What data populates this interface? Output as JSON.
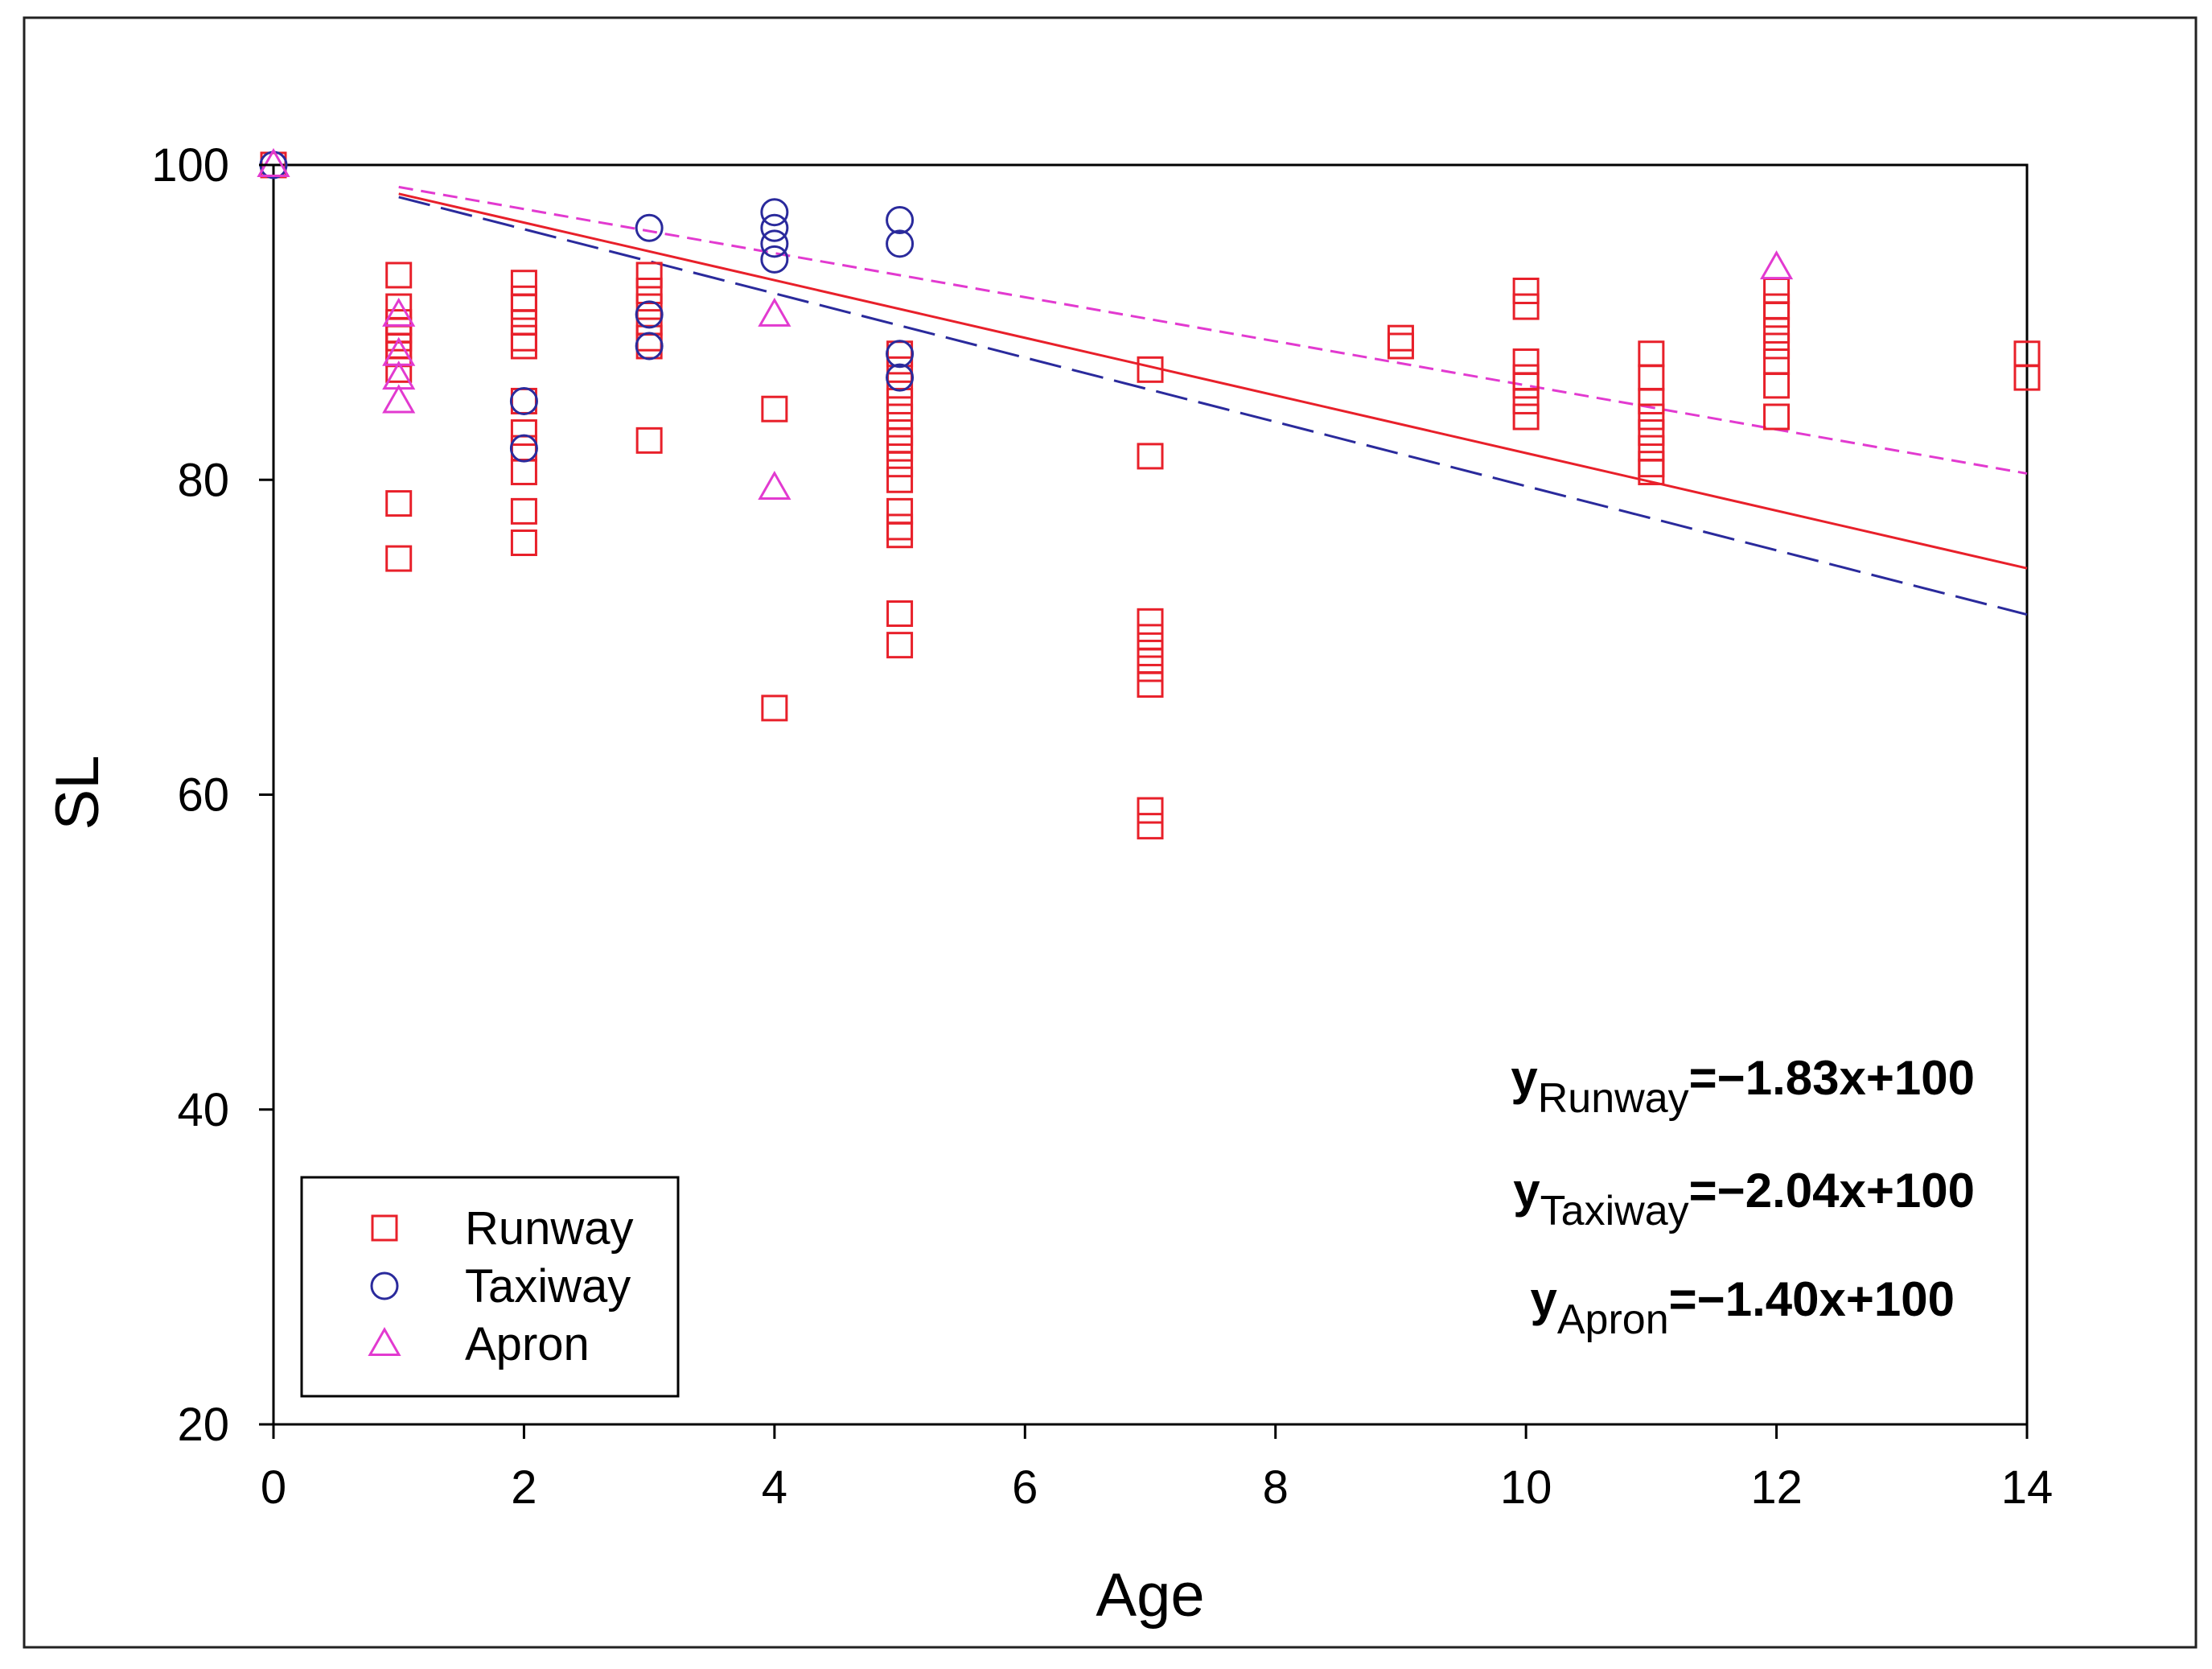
{
  "chart_data": {
    "type": "scatter",
    "title": "",
    "xlabel": "Age",
    "ylabel": "SL",
    "xlim": [
      0,
      14
    ],
    "ylim": [
      20,
      100
    ],
    "xticks": [
      "0",
      "2",
      "4",
      "6",
      "8",
      "10",
      "12",
      "14"
    ],
    "yticks": [
      "20",
      "40",
      "60",
      "80",
      "100"
    ],
    "grid": false,
    "legend_position": "bottom-left",
    "series": [
      {
        "name": "Runway",
        "marker": "square",
        "color": "#e8202a",
        "points": [
          [
            0,
            100
          ],
          [
            1,
            93
          ],
          [
            1,
            91
          ],
          [
            1,
            90
          ],
          [
            1,
            89.5
          ],
          [
            1,
            89
          ],
          [
            1,
            88.5
          ],
          [
            1,
            88
          ],
          [
            1,
            87
          ],
          [
            1,
            78.5
          ],
          [
            1,
            75
          ],
          [
            2,
            92.5
          ],
          [
            2,
            91.5
          ],
          [
            2,
            91
          ],
          [
            2,
            90
          ],
          [
            2,
            89
          ],
          [
            2,
            88.5
          ],
          [
            2,
            85
          ],
          [
            2,
            83
          ],
          [
            2,
            82
          ],
          [
            2,
            80.5
          ],
          [
            2,
            78
          ],
          [
            2,
            76
          ],
          [
            3,
            93
          ],
          [
            3,
            92
          ],
          [
            3,
            91
          ],
          [
            3,
            90
          ],
          [
            3,
            89
          ],
          [
            3,
            88.5
          ],
          [
            3,
            82.5
          ],
          [
            4,
            84.5
          ],
          [
            4,
            65.5
          ],
          [
            5,
            88
          ],
          [
            5,
            87
          ],
          [
            5,
            86
          ],
          [
            5,
            85
          ],
          [
            5,
            84
          ],
          [
            5,
            83
          ],
          [
            5,
            82.5
          ],
          [
            5,
            82
          ],
          [
            5,
            81
          ],
          [
            5,
            80
          ],
          [
            5,
            78
          ],
          [
            5,
            77
          ],
          [
            5,
            76.5
          ],
          [
            5,
            71.5
          ],
          [
            5,
            69.5
          ],
          [
            7,
            87
          ],
          [
            7,
            81.5
          ],
          [
            7,
            71
          ],
          [
            7,
            70
          ],
          [
            7,
            69
          ],
          [
            7,
            68.5
          ],
          [
            7,
            68
          ],
          [
            7,
            67
          ],
          [
            7,
            59
          ],
          [
            7,
            58
          ],
          [
            9,
            89
          ],
          [
            9,
            88.5
          ],
          [
            10,
            92
          ],
          [
            10,
            91
          ],
          [
            10,
            87.5
          ],
          [
            10,
            86.5
          ],
          [
            10,
            86
          ],
          [
            10,
            85
          ],
          [
            10,
            84
          ],
          [
            11,
            88
          ],
          [
            11,
            86.5
          ],
          [
            11,
            85
          ],
          [
            11,
            84
          ],
          [
            11,
            83
          ],
          [
            11,
            82
          ],
          [
            11,
            81
          ],
          [
            11,
            80.5
          ],
          [
            12,
            92
          ],
          [
            12,
            91
          ],
          [
            12,
            90.5
          ],
          [
            12,
            89.5
          ],
          [
            12,
            88.5
          ],
          [
            12,
            87.5
          ],
          [
            12,
            86
          ],
          [
            12,
            84
          ],
          [
            14,
            88
          ],
          [
            14,
            86.5
          ]
        ]
      },
      {
        "name": "Taxiway",
        "marker": "circle",
        "color": "#2a2a9c",
        "points": [
          [
            0,
            100
          ],
          [
            2,
            85
          ],
          [
            2,
            82
          ],
          [
            3,
            96
          ],
          [
            3,
            90.5
          ],
          [
            3,
            88.5
          ],
          [
            4,
            97
          ],
          [
            4,
            96
          ],
          [
            4,
            95
          ],
          [
            4,
            94
          ],
          [
            5,
            96.5
          ],
          [
            5,
            95
          ],
          [
            5,
            88
          ],
          [
            5,
            86.5
          ]
        ]
      },
      {
        "name": "Apron",
        "marker": "triangle",
        "color": "#e23ad0",
        "points": [
          [
            0,
            100
          ],
          [
            1,
            90.5
          ],
          [
            1,
            88
          ],
          [
            1,
            86.5
          ],
          [
            1,
            85
          ],
          [
            4,
            90.5
          ],
          [
            4,
            79.5
          ],
          [
            12,
            93.5
          ]
        ]
      }
    ],
    "fits": [
      {
        "name": "Runway",
        "slope": -1.83,
        "intercept": 100,
        "x_range": [
          1,
          14
        ],
        "style": "solid",
        "color": "#e8202a"
      },
      {
        "name": "Taxiway",
        "slope": -2.04,
        "intercept": 100,
        "x_range": [
          1,
          14
        ],
        "style": "long-dash",
        "color": "#2a2a9c"
      },
      {
        "name": "Apron",
        "slope": -1.4,
        "intercept": 100,
        "x_range": [
          1,
          14
        ],
        "style": "short-dash",
        "color": "#e23ad0"
      }
    ],
    "equations": [
      {
        "y": "y",
        "sub": "Runway",
        "rest": "=−1.83x+100"
      },
      {
        "y": "y",
        "sub": "Taxiway",
        "rest": "=−2.04x+100"
      },
      {
        "y": "y",
        "sub": "Apron",
        "rest": "=−1.40x+100"
      }
    ]
  }
}
